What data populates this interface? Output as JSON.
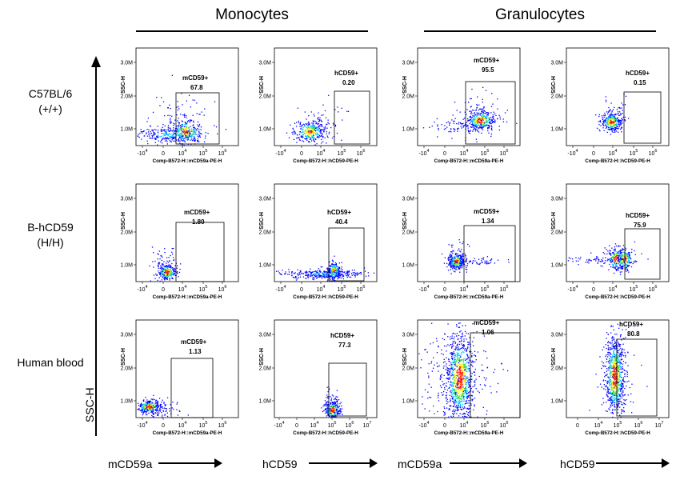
{
  "column_groups": [
    {
      "label": "Monocytes"
    },
    {
      "label": "Granulocytes"
    }
  ],
  "row_labels": [
    {
      "line1": "C57BL/6",
      "line2": "(+/+)"
    },
    {
      "line1": "B-hCD59",
      "line2": "(H/H)"
    },
    {
      "line1": "Human blood",
      "line2": ""
    }
  ],
  "y_axis_label": "SSC-H",
  "x_markers": [
    "mCD59a",
    "hCD59",
    "mCD59a",
    "hCD59"
  ],
  "colors": {
    "gate": "#000000",
    "cold": "#0000ff",
    "mid": "#00c8ff",
    "warm": "#33dd33",
    "hot": "#ffee00",
    "peak": "#ff2200"
  },
  "chart_data": {
    "type": "scatter",
    "description_of_values": "percentage of cells in the CD59+ gate",
    "panels": [
      {
        "row": 0,
        "col": 0,
        "y_title": "SSC-H",
        "x_title": "Comp-B572-H::mCD59a-PE-H",
        "y_ticks": [
          "1.0M",
          "2.0M",
          "3.0M"
        ],
        "x_ticks": [
          "-10",
          "0",
          "10",
          "10",
          "10"
        ],
        "x_exps": [
          "4",
          "",
          "4",
          "5",
          "6"
        ],
        "gate_label": "mCD59+",
        "value": "67.8"
      },
      {
        "row": 0,
        "col": 1,
        "y_title": "SSC-H",
        "x_title": "Comp-B572-H::hCD59-PE-H",
        "y_ticks": [
          "1.0M",
          "2.0M",
          "3.0M"
        ],
        "x_ticks": [
          "-10",
          "0",
          "10",
          "10",
          "10"
        ],
        "x_exps": [
          "4",
          "",
          "4",
          "5",
          "6"
        ],
        "gate_label": "hCD59+",
        "value": "0.20"
      },
      {
        "row": 0,
        "col": 2,
        "y_title": "SSC-H",
        "x_title": "Comp-B572-H::mCD59a-PE-H",
        "y_ticks": [
          "1.0M",
          "2.0M",
          "3.0M"
        ],
        "x_ticks": [
          "-10",
          "0",
          "10",
          "10",
          "10"
        ],
        "x_exps": [
          "4",
          "",
          "4",
          "5",
          "6"
        ],
        "gate_label": "mCD59+",
        "value": "95.5"
      },
      {
        "row": 0,
        "col": 3,
        "y_title": "SSC-H",
        "x_title": "Comp-B572-H::hCD59-PE-H",
        "y_ticks": [
          "1.0M",
          "2.0M",
          "3.0M"
        ],
        "x_ticks": [
          "-10",
          "0",
          "10",
          "10",
          "10"
        ],
        "x_exps": [
          "4",
          "",
          "4",
          "5",
          "6"
        ],
        "gate_label": "hCD59+",
        "value": "0.15"
      },
      {
        "row": 1,
        "col": 0,
        "y_title": "SSC-H",
        "x_title": "Comp-B572-H::mCD59a-PE-H",
        "y_ticks": [
          "1.0M",
          "2.0M",
          "3.0M"
        ],
        "x_ticks": [
          "-10",
          "0",
          "10",
          "10",
          "10"
        ],
        "x_exps": [
          "4",
          "",
          "4",
          "5",
          "6"
        ],
        "gate_label": "mCD59+",
        "value": "1.80"
      },
      {
        "row": 1,
        "col": 1,
        "y_title": "SSC-H",
        "x_title": "Comp-B572-H::hCD59-PE-H",
        "y_ticks": [
          "1.0M",
          "2.0M",
          "3.0M"
        ],
        "x_ticks": [
          "-10",
          "0",
          "10",
          "10",
          "10"
        ],
        "x_exps": [
          "4",
          "",
          "4",
          "5",
          "6"
        ],
        "gate_label": "hCD59+",
        "value": "40.4"
      },
      {
        "row": 1,
        "col": 2,
        "y_title": "SSC-H",
        "x_title": "Comp-B572-H::mCD59a-PE-H",
        "y_ticks": [
          "1.0M",
          "2.0M",
          "3.0M"
        ],
        "x_ticks": [
          "-10",
          "0",
          "10",
          "10",
          "10"
        ],
        "x_exps": [
          "4",
          "",
          "4",
          "5",
          "6"
        ],
        "gate_label": "mCD59+",
        "value": "1.34"
      },
      {
        "row": 1,
        "col": 3,
        "y_title": "SSC-H",
        "x_title": "Comp-B572-H::hCD59-PE-H",
        "y_ticks": [
          "1.0M",
          "2.0M",
          "3.0M"
        ],
        "x_ticks": [
          "-10",
          "0",
          "10",
          "10",
          "10"
        ],
        "x_exps": [
          "4",
          "",
          "4",
          "5",
          "6"
        ],
        "gate_label": "hCD59+",
        "value": "75.9"
      },
      {
        "row": 2,
        "col": 0,
        "y_title": "SSC-H",
        "x_title": "Comp-B572-H::mCD59a-PE-H",
        "y_ticks": [
          "1.0M",
          "2.0M",
          "3.0M"
        ],
        "x_ticks": [
          "-10",
          "0",
          "10",
          "10",
          "10"
        ],
        "x_exps": [
          "4",
          "",
          "4",
          "5",
          "6"
        ],
        "gate_label": "mCD59+",
        "value": "1.13"
      },
      {
        "row": 2,
        "col": 1,
        "y_title": "SSC-H",
        "x_title": "Comp-B572-H::hCD59-PE-H",
        "y_ticks": [
          "1.0M",
          "2.0M",
          "3.0M"
        ],
        "x_ticks": [
          "-10",
          "0",
          "10",
          "10",
          "10",
          "10"
        ],
        "x_exps": [
          "4",
          "",
          "4",
          "5",
          "6",
          "7"
        ],
        "gate_label": "hCD59+",
        "value": "77.3"
      },
      {
        "row": 2,
        "col": 2,
        "y_title": "SSC-H",
        "x_title": "Comp-B572-H::mCD59a-PE-H",
        "y_ticks": [
          "1.0M",
          "2.0M",
          "3.0M"
        ],
        "x_ticks": [
          "-10",
          "0",
          "10",
          "10",
          "10"
        ],
        "x_exps": [
          "4",
          "",
          "4",
          "5",
          "6"
        ],
        "gate_label": "mCD59+",
        "value": "1.06"
      },
      {
        "row": 2,
        "col": 3,
        "y_title": "SSC-H",
        "x_title": "Comp-B572-H::hCD59-PE-H",
        "y_ticks": [
          "1.0M",
          "2.0M",
          "3.0M"
        ],
        "x_ticks": [
          "0",
          "10",
          "10",
          "10",
          "10"
        ],
        "x_exps": [
          "",
          "4",
          "5",
          "6",
          "7"
        ],
        "gate_label": "hCD59+",
        "value": "80.8"
      }
    ]
  }
}
